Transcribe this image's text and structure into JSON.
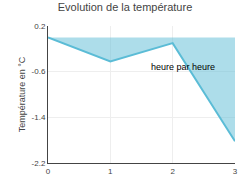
{
  "chart_data": {
    "type": "area",
    "title": "Evolution de la température",
    "ylabel": "Température en °C",
    "annotations": [
      "heure par heure"
    ],
    "x": [
      0,
      1,
      2,
      3
    ],
    "values": [
      0.0,
      -0.42,
      -0.1,
      -1.82
    ],
    "color": "#5bbcd6",
    "xlim": [
      0,
      3
    ],
    "xticks": [
      0,
      1,
      2,
      3
    ],
    "ylim": [
      -2.2,
      0.2
    ],
    "yticks": [
      0.2,
      -0.6,
      -1.4,
      -2.2
    ],
    "grid": true
  }
}
